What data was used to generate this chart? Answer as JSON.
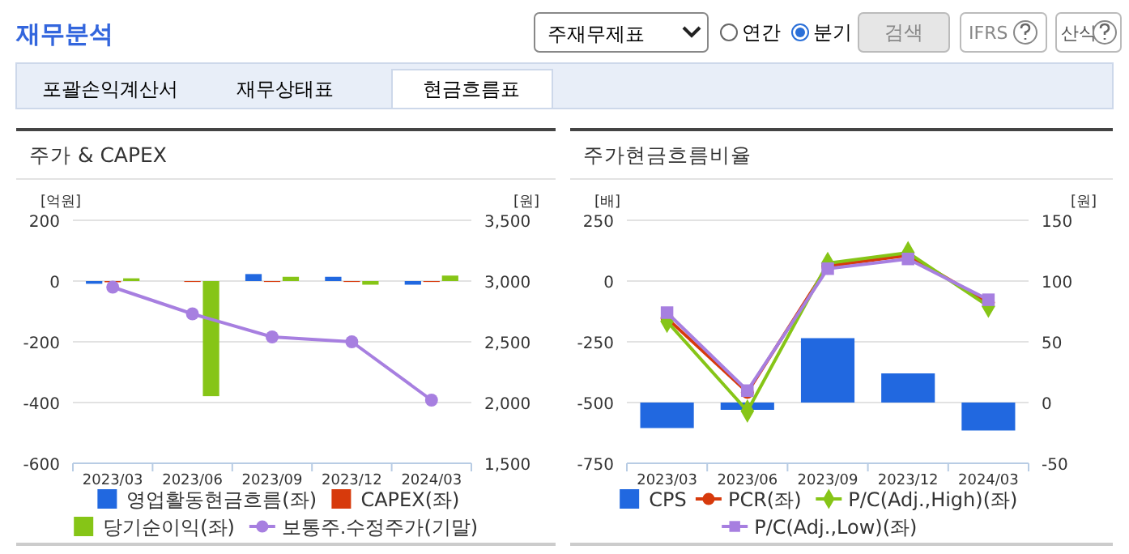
{
  "chart_data": [
    {
      "type": "other",
      "title": "재무분석",
      "annotations": [
        "주재무제표",
        "연간",
        "분기",
        "검색",
        "IFRS",
        "산식",
        "포괄손익계산서",
        "재무상태표",
        "현금흐름표"
      ]
    },
    {
      "type": "bar",
      "title": "주가 & CAPEX",
      "ylabel": "[억원]",
      "y2label": "[원]",
      "categories": [
        "2023/03",
        "2023/06",
        "2023/09",
        "2023/12",
        "2024/03"
      ],
      "series": [
        {
          "name": "영업활동현금흐름(좌)",
          "color": "#2168e0",
          "values": [
            -9,
            0,
            23,
            14,
            -12
          ]
        },
        {
          "name": "CAPEX(좌)",
          "color": "#d73a0c",
          "values": [
            -4,
            -3,
            -3,
            -3,
            -3
          ]
        },
        {
          "name": "당기순이익(좌)",
          "color": "#86c517",
          "values": [
            9,
            -379,
            14,
            -12,
            18
          ]
        },
        {
          "name": "보통주.수정주가(기말)",
          "type": "line",
          "axis": "y2",
          "color": "#a77fe0",
          "marker": "circle",
          "values": [
            2950,
            2730,
            2540,
            2500,
            2020
          ]
        }
      ],
      "ylim": [
        -600,
        200
      ],
      "yticks": [
        -600,
        -400,
        -200,
        0,
        200
      ],
      "y2lim": [
        1500,
        3500
      ],
      "y2ticks": [
        {
          "value": 1500,
          "label": "1,500"
        },
        {
          "value": 2000,
          "label": "2,000"
        },
        {
          "value": 2500,
          "label": "2,500"
        },
        {
          "value": 3000,
          "label": "3,000"
        },
        {
          "value": 3500,
          "label": "3,500"
        }
      ],
      "grid": "y",
      "legend": "bottom"
    },
    {
      "type": "bar",
      "title": "주가현금흐름비율",
      "ylabel": "[배]",
      "y2label": "[원]",
      "categories": [
        "2023/03",
        "2023/06",
        "2023/09",
        "2023/12",
        "2024/03"
      ],
      "series": [
        {
          "name": "CPS",
          "color": "#2168e0",
          "axis": "y2",
          "values": [
            -21,
            -6,
            53,
            24,
            -23
          ]
        },
        {
          "name": "PCR(좌)",
          "type": "line",
          "color": "#d73a0c",
          "marker": "circle",
          "values": [
            -153,
            -458,
            62,
            106,
            -88
          ]
        },
        {
          "name": "P/C(Adj.,High)(좌)",
          "type": "line",
          "color": "#86c517",
          "marker": "diamond",
          "values": [
            -166,
            -535,
            73,
            117,
            -104
          ]
        },
        {
          "name": "P/C(Adj.,Low)(좌)",
          "type": "line",
          "color": "#a77fe0",
          "marker": "square",
          "values": [
            -130,
            -451,
            51,
            91,
            -77
          ]
        }
      ],
      "ylim": [
        -750,
        250
      ],
      "yticks": [
        -750,
        -500,
        -250,
        0,
        250
      ],
      "y2lim": [
        -50,
        150
      ],
      "y2ticks": [
        -50,
        0,
        50,
        100,
        150
      ],
      "grid": "y",
      "legend": "bottom"
    }
  ]
}
